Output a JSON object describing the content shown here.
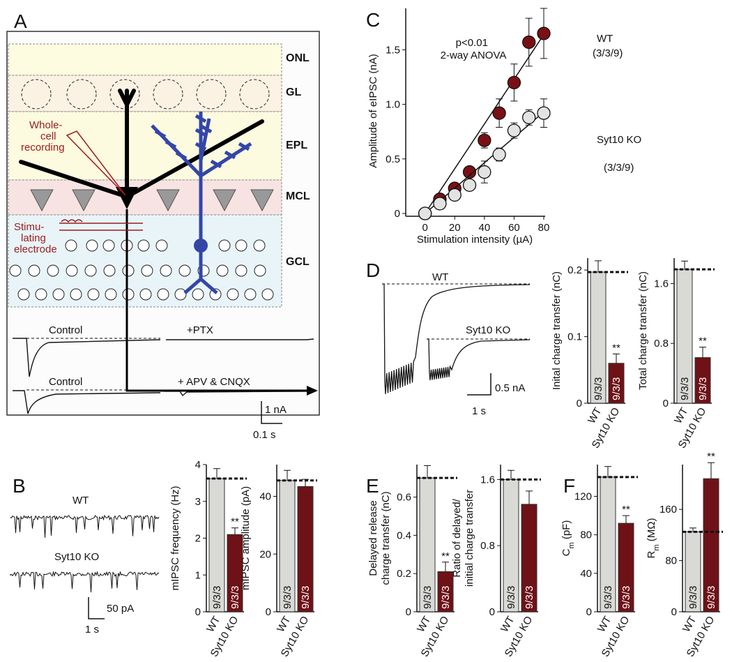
{
  "figure": {
    "panel_labels": [
      "A",
      "B",
      "C",
      "D",
      "E",
      "F"
    ]
  },
  "diagram": {
    "layers": [
      "ONL",
      "GL",
      "EPL",
      "MCL",
      "GCL"
    ],
    "recording_label": [
      "Whole-",
      "cell",
      "recording"
    ],
    "stimulating_label": [
      "Stimu-",
      "lating",
      "electrode"
    ],
    "traces": [
      [
        "Control",
        "+PTX"
      ],
      [
        "Control",
        "+ APV & CNQX"
      ]
    ],
    "scale_current": "1 nA",
    "scale_time": "0.1 s"
  },
  "traces_B": {
    "labels": [
      "WT",
      "Syt10 KO"
    ],
    "scale_current": "50 pA",
    "scale_time": "1 s"
  },
  "traces_D": {
    "labels": [
      "WT",
      "Syt10 KO"
    ],
    "scale_current": "0.5 nA",
    "scale_time": "1 s"
  },
  "chart_data": [
    {
      "type": "line",
      "note": [
        "p<0.01",
        "2-way ANOVA"
      ],
      "xlabel": "Stimulation intensity (µA)",
      "ylabel": "Amplitude of eIPSC (nA)",
      "x": [
        0,
        10,
        20,
        30,
        40,
        50,
        60,
        70,
        80
      ],
      "xlim": [
        -13,
        80
      ],
      "ylim": [
        0,
        1.88
      ],
      "xticks": [
        0,
        20,
        40,
        60,
        80
      ],
      "yticks": [
        0,
        0.5,
        {
          "value": 1,
          "label": "1.0"
        },
        1.5
      ],
      "series": [
        {
          "name": "WT",
          "n_label": "(3/3/9)",
          "color": "#7a1015",
          "values": [
            0,
            0.13,
            0.23,
            0.38,
            0.67,
            0.92,
            1.2,
            1.57,
            1.65
          ],
          "errors": [
            null,
            0.03,
            0.03,
            0.04,
            0.07,
            0.13,
            0.17,
            0.22,
            0.23
          ],
          "fit": [
            0,
            1.64
          ]
        },
        {
          "name": "Syt10 KO",
          "n_label": "(3/3/9)",
          "color": "#e3e3e1",
          "values": [
            0,
            0.09,
            0.17,
            0.26,
            0.38,
            0.54,
            0.76,
            0.88,
            0.92
          ],
          "errors": [
            null,
            0.03,
            0.03,
            0.04,
            0.1,
            0.06,
            0.07,
            0.07,
            0.13
          ],
          "fit": [
            0,
            0.93
          ]
        }
      ]
    },
    {
      "type": "bar",
      "ylabel": [
        "mIPSC frequency (Hz)"
      ],
      "categories": [
        "WT",
        "Syt10 KO"
      ],
      "values": [
        3.62,
        2.1
      ],
      "errors": [
        0.27,
        0.18
      ],
      "colors": [
        "#d9d9d6",
        "#6e1217"
      ],
      "n_labels": [
        "9/3/3",
        "9/3/3"
      ],
      "significance_label": "**",
      "reference_line": true,
      "ylim": [
        0,
        4
      ],
      "yticks": [
        0,
        1,
        2,
        3,
        4
      ]
    },
    {
      "type": "bar",
      "ylabel": [
        "mIPSC amplitude (pA)"
      ],
      "categories": [
        "WT",
        "Syt10 KO"
      ],
      "values": [
        45.5,
        43.4
      ],
      "errors": [
        3.5,
        2.5
      ],
      "colors": [
        "#d9d9d6",
        "#6e1217"
      ],
      "n_labels": [
        "9/3/3",
        "9/3/3"
      ],
      "reference_line": true,
      "ylim": [
        0,
        51
      ],
      "yticks": [
        0,
        20,
        40
      ]
    },
    {
      "type": "bar",
      "ylabel": [
        "Inital charge transfer (nC)"
      ],
      "categories": [
        "WT",
        "Syt10 KO"
      ],
      "values": [
        0.197,
        0.06
      ],
      "errors": [
        0.017,
        0.014
      ],
      "colors": [
        "#d9d9d6",
        "#6e1217"
      ],
      "n_labels": [
        "9/3/3",
        "9/3/3"
      ],
      "significance_label": "**",
      "reference_line": true,
      "ylim": [
        0,
        0.218
      ],
      "yticks": [
        0,
        0.1,
        0.2
      ]
    },
    {
      "type": "bar",
      "ylabel": [
        "Total charge transfer (nC)"
      ],
      "categories": [
        "WT",
        "Syt10 KO"
      ],
      "values": [
        1.79,
        0.61
      ],
      "errors": [
        0.11,
        0.14
      ],
      "colors": [
        "#d9d9d6",
        "#6e1217"
      ],
      "n_labels": [
        "9/3/3",
        "9/3/3"
      ],
      "significance_label": "**",
      "reference_line": true,
      "ylim": [
        0,
        1.94
      ],
      "yticks": [
        0,
        0.8,
        1.6
      ]
    },
    {
      "type": "bar",
      "ylabel": [
        "Delayed release",
        "charge transfer (nC)"
      ],
      "categories": [
        "WT",
        "Syt10 KO"
      ],
      "values": [
        0.7,
        0.21
      ],
      "errors": [
        0.065,
        0.05
      ],
      "colors": [
        "#d9d9d6",
        "#6e1217"
      ],
      "n_labels": [
        "9/3/3",
        "9/3/3"
      ],
      "significance_label": "**",
      "reference_line": true,
      "ylim": [
        0,
        0.77
      ],
      "yticks": [
        0,
        0.2,
        0.4,
        0.6
      ]
    },
    {
      "type": "bar",
      "ylabel": [
        "Ratio of delayed/",
        "initial charge transfer"
      ],
      "categories": [
        "WT",
        "Syt10 KO"
      ],
      "values": [
        1.6,
        1.3
      ],
      "errors": [
        0.11,
        0.16
      ],
      "colors": [
        "#d9d9d6",
        "#6e1217"
      ],
      "n_labels": [
        "9/3/3",
        "9/3/3"
      ],
      "reference_line": true,
      "ylim": [
        0,
        1.78
      ],
      "yticks": [
        0,
        0.8,
        1.6
      ]
    },
    {
      "type": "bar",
      "ylabel": [
        "C"
      ],
      "ylabel_sub": "m",
      "ylabel_unit": " (pF)",
      "categories": [
        "WT",
        "Syt10 KO"
      ],
      "values": [
        140,
        92
      ],
      "errors": [
        11,
        8
      ],
      "colors": [
        "#d9d9d6",
        "#6e1217"
      ],
      "n_labels": [
        "9/3/3",
        "9/3/3"
      ],
      "significance_label": "**",
      "reference_line": true,
      "ylim": [
        0,
        153
      ],
      "yticks": [
        0,
        40,
        80,
        120
      ]
    },
    {
      "type": "bar",
      "ylabel": [
        "R"
      ],
      "ylabel_sub": "m",
      "ylabel_unit": " (MΩ)",
      "categories": [
        "WT",
        "Syt10 KO"
      ],
      "values": [
        125,
        208
      ],
      "errors": [
        6,
        25
      ],
      "colors": [
        "#d9d9d6",
        "#6e1217"
      ],
      "n_labels": [
        "9/3/3",
        "9/3/3"
      ],
      "significance_label": "**",
      "reference_line": true,
      "ylim": [
        0,
        230
      ],
      "yticks": [
        0,
        80,
        160
      ]
    }
  ]
}
